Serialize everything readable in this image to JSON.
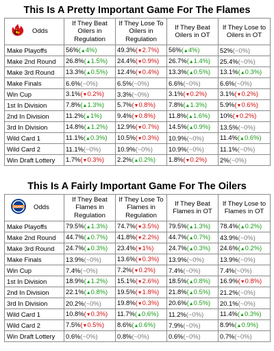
{
  "sections": [
    {
      "title": "This Is A Pretty Important Game For The Flames",
      "logo_icon": "flames-logo-icon",
      "odds_label": "Odds",
      "headers": [
        "If They Beat Oilers in Regulation",
        "If They Lose To Oilers in Regulation",
        "If They Beat Oilers in OT",
        "If They Lose to Oilers in OT"
      ],
      "rows": [
        {
          "label": "Make Playoffs",
          "cells": [
            {
              "v": "56%",
              "d": "4%",
              "t": "up"
            },
            {
              "v": "49.3%",
              "d": "2.7%",
              "t": "down"
            },
            {
              "v": "56%",
              "d": "4%",
              "t": "up"
            },
            {
              "v": "52%",
              "d": "0%",
              "t": "flat"
            }
          ]
        },
        {
          "label": "Make 2nd Round",
          "cells": [
            {
              "v": "26.8%",
              "d": "1.5%",
              "t": "up"
            },
            {
              "v": "24.4%",
              "d": "0.9%",
              "t": "down"
            },
            {
              "v": "26.7%",
              "d": "1.4%",
              "t": "up"
            },
            {
              "v": "25.4%",
              "d": "0%",
              "t": "flat"
            }
          ]
        },
        {
          "label": "Make 3rd Round",
          "cells": [
            {
              "v": "13.3%",
              "d": "0.5%",
              "t": "up"
            },
            {
              "v": "12.4%",
              "d": "0.4%",
              "t": "down"
            },
            {
              "v": "13.3%",
              "d": "0.5%",
              "t": "up"
            },
            {
              "v": "13.1%",
              "d": "0.3%",
              "t": "up"
            }
          ]
        },
        {
          "label": "Make Finals",
          "cells": [
            {
              "v": "6.6%",
              "d": "0%",
              "t": "flat"
            },
            {
              "v": "6.5%",
              "d": "0%",
              "t": "flat"
            },
            {
              "v": "6.6%",
              "d": "0%",
              "t": "flat"
            },
            {
              "v": "6.6%",
              "d": "0%",
              "t": "flat"
            }
          ]
        },
        {
          "label": "Win Cup",
          "cells": [
            {
              "v": "3.1%",
              "d": "0.2%",
              "t": "down"
            },
            {
              "v": "3.3%",
              "d": "0%",
              "t": "flat"
            },
            {
              "v": "3.1%",
              "d": "0.2%",
              "t": "down"
            },
            {
              "v": "3.1%",
              "d": "0.2%",
              "t": "down"
            }
          ]
        },
        {
          "label": "1st In Division",
          "cells": [
            {
              "v": "7.8%",
              "d": "1.3%",
              "t": "up"
            },
            {
              "v": "5.7%",
              "d": "0.8%",
              "t": "down"
            },
            {
              "v": "7.8%",
              "d": "1.3%",
              "t": "up"
            },
            {
              "v": "5.9%",
              "d": "0.6%",
              "t": "down"
            }
          ]
        },
        {
          "label": "2nd In Division",
          "cells": [
            {
              "v": "11.2%",
              "d": "1%",
              "t": "up"
            },
            {
              "v": "9.4%",
              "d": "0.8%",
              "t": "down"
            },
            {
              "v": "11.8%",
              "d": "1.6%",
              "t": "up"
            },
            {
              "v": "10%",
              "d": "0.2%",
              "t": "down"
            }
          ]
        },
        {
          "label": "3rd In Division",
          "cells": [
            {
              "v": "14.8%",
              "d": "1.2%",
              "t": "up"
            },
            {
              "v": "12.9%",
              "d": "0.7%",
              "t": "down"
            },
            {
              "v": "14.5%",
              "d": "0.9%",
              "t": "up"
            },
            {
              "v": "13.5%",
              "d": "0%",
              "t": "flat"
            }
          ]
        },
        {
          "label": "Wild Card 1",
          "cells": [
            {
              "v": "11.1%",
              "d": "0.3%",
              "t": "up"
            },
            {
              "v": "10.5%",
              "d": "0.3%",
              "t": "down"
            },
            {
              "v": "10.9%",
              "d": "0%",
              "t": "flat"
            },
            {
              "v": "11.4%",
              "d": "0.6%",
              "t": "up"
            }
          ]
        },
        {
          "label": "Wild Card 2",
          "cells": [
            {
              "v": "11.1%",
              "d": "0%",
              "t": "flat"
            },
            {
              "v": "10.9%",
              "d": "0%",
              "t": "flat"
            },
            {
              "v": "10.9%",
              "d": "0%",
              "t": "flat"
            },
            {
              "v": "11.1%",
              "d": "0%",
              "t": "flat"
            }
          ]
        },
        {
          "label": "Win Draft Lottery",
          "cells": [
            {
              "v": "1.7%",
              "d": "0.3%",
              "t": "down"
            },
            {
              "v": "2.2%",
              "d": "0.2%",
              "t": "up"
            },
            {
              "v": "1.8%",
              "d": "0.2%",
              "t": "down"
            },
            {
              "v": "2%",
              "d": "0%",
              "t": "flat"
            }
          ]
        }
      ]
    },
    {
      "title": "This Is A Fairly Important Game For The Oilers",
      "logo_icon": "oilers-logo-icon",
      "odds_label": "Odds",
      "headers": [
        "If They Beat Flames in Regulation",
        "If They Lose To Flames in Regulation",
        "If They Beat Flames in OT",
        "If They Lose to Flames in OT"
      ],
      "rows": [
        {
          "label": "Make Playoffs",
          "cells": [
            {
              "v": "79.5%",
              "d": "1.3%",
              "t": "up"
            },
            {
              "v": "74.7%",
              "d": "3.5%",
              "t": "down"
            },
            {
              "v": "79.5%",
              "d": "1.3%",
              "t": "up"
            },
            {
              "v": "78.4%",
              "d": "0.2%",
              "t": "up"
            }
          ]
        },
        {
          "label": "Make 2nd Round",
          "cells": [
            {
              "v": "44.7%",
              "d": "0.7%",
              "t": "up"
            },
            {
              "v": "41.8%",
              "d": "2.2%",
              "t": "down"
            },
            {
              "v": "44.7%",
              "d": "0.7%",
              "t": "up"
            },
            {
              "v": "43.9%",
              "d": "0%",
              "t": "flat"
            }
          ]
        },
        {
          "label": "Make 3rd Round",
          "cells": [
            {
              "v": "24.7%",
              "d": "0.3%",
              "t": "up"
            },
            {
              "v": "23.4%",
              "d": "1%",
              "t": "down"
            },
            {
              "v": "24.7%",
              "d": "0.3%",
              "t": "up"
            },
            {
              "v": "24.6%",
              "d": "0.2%",
              "t": "up"
            }
          ]
        },
        {
          "label": "Make Finals",
          "cells": [
            {
              "v": "13.9%",
              "d": "0%",
              "t": "flat"
            },
            {
              "v": "13.6%",
              "d": "0.3%",
              "t": "down"
            },
            {
              "v": "13.9%",
              "d": "0%",
              "t": "flat"
            },
            {
              "v": "13.9%",
              "d": "0%",
              "t": "flat"
            }
          ]
        },
        {
          "label": "Win Cup",
          "cells": [
            {
              "v": "7.4%",
              "d": "0%",
              "t": "flat"
            },
            {
              "v": "7.2%",
              "d": "0.2%",
              "t": "down"
            },
            {
              "v": "7.4%",
              "d": "0%",
              "t": "flat"
            },
            {
              "v": "7.4%",
              "d": "0%",
              "t": "flat"
            }
          ]
        },
        {
          "label": "1st In Division",
          "cells": [
            {
              "v": "18.9%",
              "d": "1.2%",
              "t": "up"
            },
            {
              "v": "15.1%",
              "d": "2.6%",
              "t": "down"
            },
            {
              "v": "18.5%",
              "d": "0.8%",
              "t": "up"
            },
            {
              "v": "16.9%",
              "d": "0.8%",
              "t": "down"
            }
          ]
        },
        {
          "label": "2nd In Division",
          "cells": [
            {
              "v": "22.1%",
              "d": "0.8%",
              "t": "up"
            },
            {
              "v": "19.5%",
              "d": "1.8%",
              "t": "down"
            },
            {
              "v": "21.8%",
              "d": "0.5%",
              "t": "up"
            },
            {
              "v": "21.2%",
              "d": "0%",
              "t": "flat"
            }
          ]
        },
        {
          "label": "3rd In Division",
          "cells": [
            {
              "v": "20.2%",
              "d": "0%",
              "t": "flat"
            },
            {
              "v": "19.8%",
              "d": "0.3%",
              "t": "down"
            },
            {
              "v": "20.6%",
              "d": "0.5%",
              "t": "up"
            },
            {
              "v": "20.1%",
              "d": "0%",
              "t": "flat"
            }
          ]
        },
        {
          "label": "Wild Card 1",
          "cells": [
            {
              "v": "10.8%",
              "d": "0.3%",
              "t": "down"
            },
            {
              "v": "11.7%",
              "d": "0.6%",
              "t": "up"
            },
            {
              "v": "11.2%",
              "d": "0%",
              "t": "flat"
            },
            {
              "v": "11.4%",
              "d": "0.3%",
              "t": "up"
            }
          ]
        },
        {
          "label": "Wild Card 2",
          "cells": [
            {
              "v": "7.5%",
              "d": "0.5%",
              "t": "down"
            },
            {
              "v": "8.6%",
              "d": "0.6%",
              "t": "up"
            },
            {
              "v": "7.9%",
              "d": "0%",
              "t": "flat"
            },
            {
              "v": "8.9%",
              "d": "0.9%",
              "t": "up"
            }
          ]
        },
        {
          "label": "Win Draft Lottery",
          "cells": [
            {
              "v": "0.6%",
              "d": "0%",
              "t": "flat"
            },
            {
              "v": "0.8%",
              "d": "0%",
              "t": "flat"
            },
            {
              "v": "0.6%",
              "d": "0%",
              "t": "flat"
            },
            {
              "v": "0.7%",
              "d": "0%",
              "t": "flat"
            }
          ]
        }
      ]
    }
  ]
}
